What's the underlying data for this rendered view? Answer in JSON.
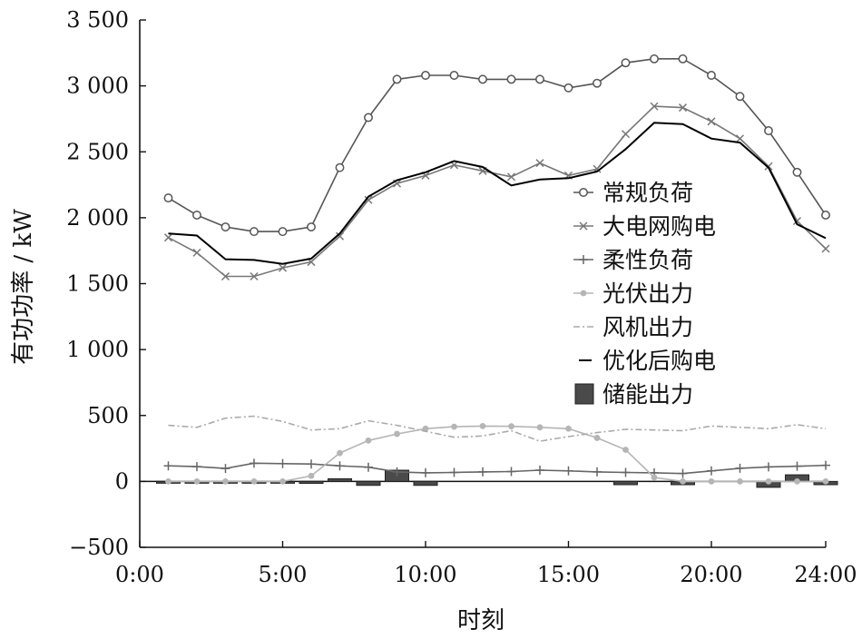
{
  "chart_data": {
    "type": "line",
    "title": "",
    "xlabel": "时刻",
    "ylabel": "有功功率 / kW",
    "xlim": [
      0,
      24
    ],
    "ylim": [
      -500,
      3500
    ],
    "x_ticks": [
      0,
      5,
      10,
      15,
      20,
      24
    ],
    "x_tick_labels": [
      "0:00",
      "5:00",
      "10:00",
      "15:00",
      "20:00",
      "24:00"
    ],
    "y_ticks": [
      -500,
      0,
      500,
      1000,
      1500,
      2000,
      2500,
      3000,
      3500
    ],
    "y_tick_labels": [
      "−500",
      "0",
      "500",
      "1 000",
      "1 500",
      "2 000",
      "2 500",
      "3 000",
      "3 500"
    ],
    "grid": false,
    "legend_position": "right",
    "x": [
      1,
      2,
      3,
      4,
      5,
      6,
      7,
      8,
      9,
      10,
      11,
      12,
      13,
      14,
      15,
      16,
      17,
      18,
      19,
      20,
      21,
      22,
      23,
      24
    ],
    "series": [
      {
        "name": "常规负荷",
        "style": "line-circle",
        "color": "#555555",
        "values": [
          2150,
          2020,
          1930,
          1895,
          1895,
          1930,
          2380,
          2760,
          3050,
          3080,
          3080,
          3050,
          3050,
          3050,
          2985,
          3020,
          3175,
          3205,
          3205,
          3080,
          2920,
          2660,
          2345,
          2020
        ]
      },
      {
        "name": "大电网购电",
        "style": "line-x",
        "color": "#777777",
        "values": [
          1850,
          1735,
          1555,
          1555,
          1620,
          1665,
          1860,
          2135,
          2260,
          2320,
          2400,
          2355,
          2310,
          2415,
          2320,
          2370,
          2635,
          2845,
          2835,
          2730,
          2600,
          2390,
          1975,
          1765
        ]
      },
      {
        "name": "柔性负荷",
        "style": "line-plus",
        "color": "#666666",
        "values": [
          118,
          112,
          98,
          138,
          135,
          132,
          118,
          108,
          72,
          65,
          68,
          72,
          75,
          85,
          80,
          72,
          68,
          65,
          60,
          80,
          100,
          110,
          115,
          122
        ]
      },
      {
        "name": "光伏出力",
        "style": "line-dot",
        "color": "#b5b5b5",
        "values": [
          0,
          0,
          0,
          0,
          0,
          42,
          215,
          310,
          360,
          400,
          415,
          420,
          418,
          410,
          400,
          330,
          240,
          30,
          0,
          0,
          0,
          0,
          0,
          0
        ]
      },
      {
        "name": "风机出力",
        "style": "dash-dot",
        "color": "#aaaaaa",
        "values": [
          425,
          410,
          480,
          495,
          455,
          390,
          400,
          460,
          425,
          380,
          335,
          345,
          385,
          305,
          340,
          370,
          395,
          390,
          385,
          420,
          410,
          400,
          430,
          400
        ]
      },
      {
        "name": "优化后购电",
        "style": "line",
        "color": "#000000",
        "values": [
          1880,
          1865,
          1685,
          1680,
          1650,
          1690,
          1880,
          2160,
          2285,
          2345,
          2430,
          2385,
          2245,
          2290,
          2300,
          2350,
          2520,
          2720,
          2710,
          2600,
          2570,
          2380,
          1950,
          1845
        ]
      },
      {
        "name": "储能出力",
        "style": "bar",
        "color": "#4a4a4a",
        "values": [
          -10,
          -10,
          -12,
          -12,
          -12,
          -15,
          20,
          -30,
          85,
          -30,
          0,
          0,
          0,
          0,
          0,
          0,
          -25,
          0,
          -25,
          0,
          0,
          -45,
          50,
          -25
        ]
      }
    ]
  }
}
